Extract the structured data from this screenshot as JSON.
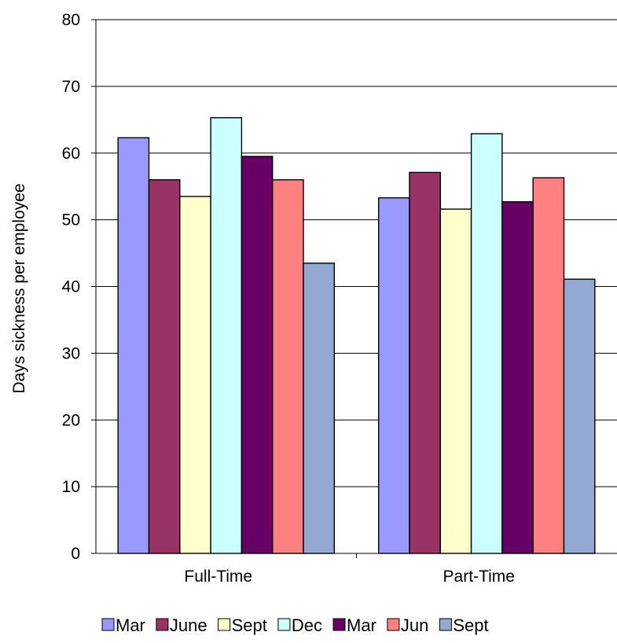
{
  "chart_data": {
    "type": "bar",
    "title": "",
    "xlabel": "",
    "ylabel": "Days sickness per employee",
    "ylim": [
      0,
      80
    ],
    "yticks": [
      "0",
      "10",
      "20",
      "30",
      "40",
      "50",
      "60",
      "70",
      "80"
    ],
    "categories": [
      "Full-Time",
      "Part-Time"
    ],
    "grid": true,
    "legend_position": "bottom",
    "series": [
      {
        "name": "Mar",
        "color": "#9999ff",
        "values": [
          62.3,
          53.3
        ]
      },
      {
        "name": "June",
        "color": "#993366",
        "values": [
          56.0,
          57.1
        ]
      },
      {
        "name": "Sept",
        "color": "#ffffcc",
        "values": [
          53.5,
          51.6
        ]
      },
      {
        "name": "Dec",
        "color": "#ccffff",
        "values": [
          65.3,
          62.9
        ]
      },
      {
        "name": "Mar",
        "color": "#660066",
        "values": [
          59.5,
          52.7
        ]
      },
      {
        "name": "Jun",
        "color": "#ff8080",
        "values": [
          56.0,
          56.3
        ]
      },
      {
        "name": "Sept",
        "color": "#94a9d1",
        "values": [
          43.5,
          41.1
        ]
      }
    ]
  }
}
